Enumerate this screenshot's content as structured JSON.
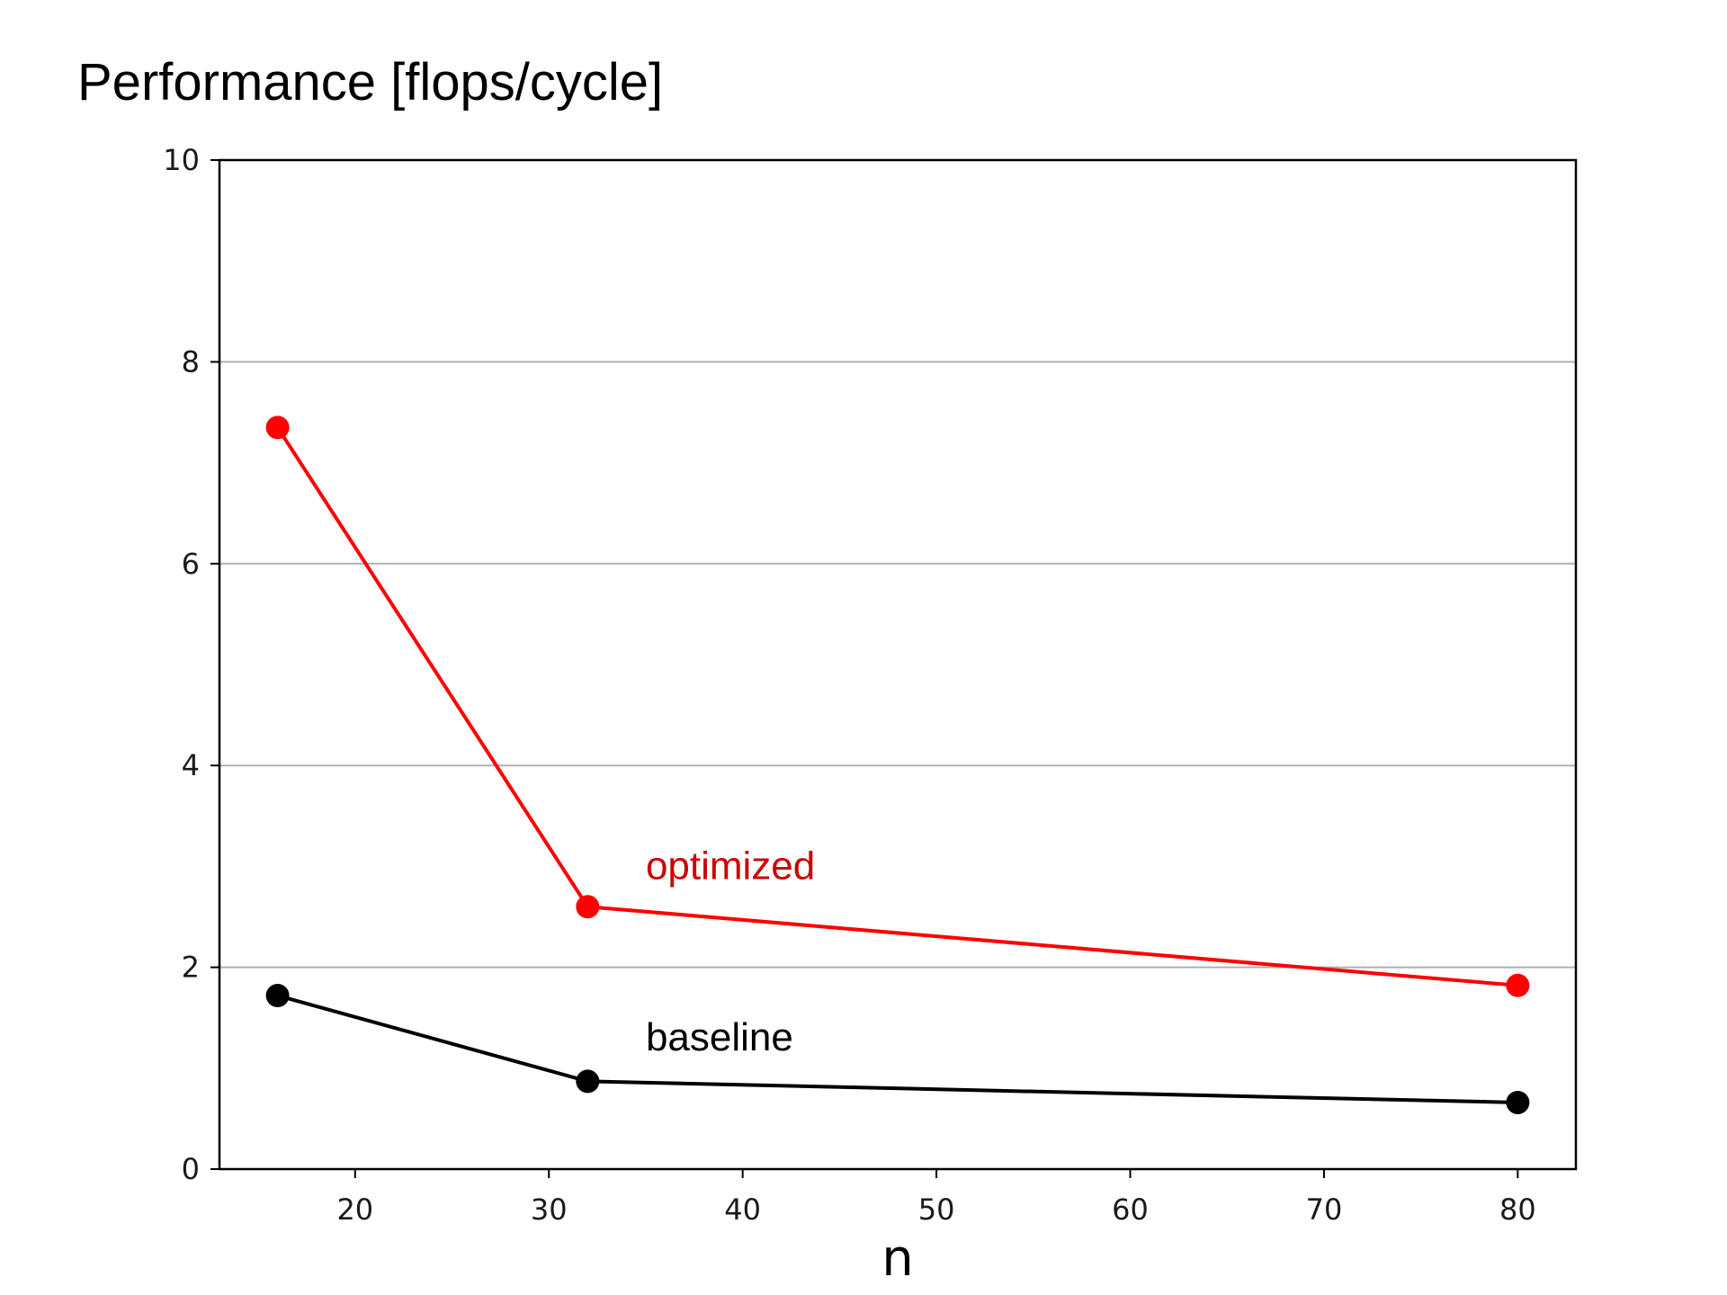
{
  "page": {
    "title": "Performance [flops/cycle]"
  },
  "chart_data": {
    "type": "line",
    "title": "Performance [flops/cycle]",
    "xlabel": "n",
    "ylabel": "",
    "xlim": [
      13,
      83
    ],
    "ylim": [
      0,
      10
    ],
    "xticks": [
      20,
      30,
      40,
      50,
      60,
      70,
      80
    ],
    "yticks": [
      0,
      2,
      4,
      6,
      8,
      10
    ],
    "grid": "horizontal",
    "legend": "none",
    "series": [
      {
        "name": "optimized",
        "color": "#ff0000",
        "x": [
          16,
          32,
          80
        ],
        "y": [
          7.35,
          2.6,
          1.82
        ]
      },
      {
        "name": "baseline",
        "color": "#000000",
        "x": [
          16,
          32,
          80
        ],
        "y": [
          1.72,
          0.87,
          0.66
        ]
      }
    ],
    "annotations": [
      {
        "text": "optimized",
        "x": 35,
        "y": 3.0,
        "color": "#cc0000"
      },
      {
        "text": "baseline",
        "x": 35,
        "y": 1.3,
        "color": "#000000"
      }
    ]
  }
}
